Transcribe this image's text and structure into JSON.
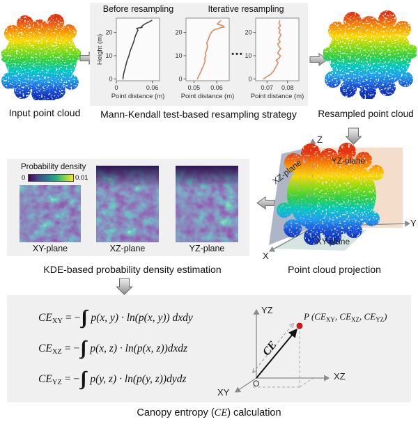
{
  "top": {
    "input_label": "Input point cloud",
    "resampling_label": "Mann-Kendall test-based resampling strategy",
    "resampled_label": "Resampled point cloud",
    "chart_title_before": "Before resampling",
    "chart_title_iterative": "Iterative resampling",
    "dots": "•••"
  },
  "chart_data": [
    {
      "id": "before-resampling",
      "type": "line",
      "title": "Before resampling",
      "xlabel": "Point distance (m)",
      "ylabel": "Height (m)",
      "xlim": [
        0,
        0.072
      ],
      "ylim": [
        -0.8,
        26.2
      ],
      "xticks": [
        0,
        0.06
      ],
      "xtick_labels": [
        "0",
        "0.06"
      ],
      "yticks": [
        0,
        10,
        20
      ],
      "color": "#3d3d3d",
      "x": [
        0.011,
        0.012,
        0.014,
        0.016,
        0.018,
        0.021,
        0.023,
        0.026,
        0.029,
        0.031,
        0.034,
        0.036,
        0.034,
        0.043,
        0.042,
        0.047,
        0.05,
        0.055,
        0.059
      ],
      "y": [
        0,
        2,
        4,
        6,
        8,
        10,
        12,
        14,
        16,
        18,
        20,
        21,
        21.8,
        22.2,
        22.6,
        23.6,
        24,
        24.6,
        25.2
      ]
    },
    {
      "id": "iterative-resampling-1",
      "type": "line",
      "title": "Iterative resampling",
      "xlabel": "Point distance (m)",
      "ylabel": "",
      "xlim": [
        0.0465,
        0.0655
      ],
      "ylim": [
        -0.8,
        26.2
      ],
      "xticks": [
        0.05,
        0.06
      ],
      "xtick_labels": [
        "0.05",
        "0.06"
      ],
      "yticks": [
        0,
        10,
        20
      ],
      "color": "#e2885f",
      "x": [
        0.0515,
        0.0522,
        0.053,
        0.0536,
        0.0543,
        0.0549,
        0.0547,
        0.0553,
        0.055,
        0.0556,
        0.056,
        0.0556,
        0.0563,
        0.0568,
        0.0576,
        0.0586,
        0.0615,
        0.0634,
        0.0625,
        0.0603,
        0.0608,
        0.0617
      ],
      "y": [
        0,
        1.5,
        3,
        4.5,
        6,
        7.5,
        9,
        10,
        11,
        12.5,
        14,
        15.5,
        17,
        18.5,
        20,
        21,
        22,
        22.4,
        23,
        23.6,
        24.2,
        25
      ]
    },
    {
      "id": "iterative-resampling-n",
      "type": "line",
      "title": "Iterative resampling",
      "xlabel": "Point distance (m)",
      "ylabel": "",
      "xlim": [
        0.0645,
        0.0855
      ],
      "ylim": [
        -0.8,
        26.2
      ],
      "xticks": [
        0.07,
        0.08
      ],
      "xtick_labels": [
        "0.07",
        "0.08"
      ],
      "yticks": [
        0,
        10,
        20
      ],
      "color": "#e2885f",
      "x": [
        0.0683,
        0.07,
        0.0718,
        0.0733,
        0.0742,
        0.0748,
        0.0754,
        0.0744,
        0.076,
        0.0765,
        0.0752,
        0.0758,
        0.0766,
        0.0758,
        0.0752,
        0.0764,
        0.0756,
        0.0762,
        0.0768,
        0.0758,
        0.0764,
        0.0756,
        0.0766,
        0.0758,
        0.0762
      ],
      "y": [
        0,
        1,
        2,
        3.5,
        5,
        6,
        7,
        8,
        9,
        10,
        11,
        12,
        13,
        14,
        15,
        16,
        17,
        18,
        19,
        20,
        21,
        22,
        23,
        24,
        25
      ]
    }
  ],
  "kde": {
    "colorbar_title": "Probability density",
    "colorbar_min": "0",
    "colorbar_max": "0.01",
    "plane_labels": [
      "XY-plane",
      "XZ-plane",
      "YZ-plane"
    ],
    "caption": "KDE-based probability density estimation"
  },
  "projection": {
    "caption": "Point cloud projection",
    "axis_x": "X",
    "axis_y": "Y",
    "axis_z": "Z",
    "plane_xz": "XZ-plane",
    "plane_yz": "YZ-plane",
    "plane_xy": "XY-plane"
  },
  "entropy": {
    "equations": [
      {
        "lhs": "CE",
        "sub": "XY",
        "rel": "= −",
        "integral": "∫∫",
        "body": "p(x, y) · ln(p(x, y)) dxdy"
      },
      {
        "lhs": "CE",
        "sub": "XZ",
        "rel": "= −",
        "integral": "∫∫",
        "body": "p(x, z) · ln(p(x, z))dxdz"
      },
      {
        "lhs": "CE",
        "sub": "YZ",
        "rel": "= −",
        "integral": "∫∫",
        "body": "p(y, z) · ln(p(y, z))dydz"
      }
    ],
    "diagram": {
      "axis_yz": "YZ",
      "axis_xz": "XZ",
      "axis_xy": "XY",
      "origin": "O",
      "ce_label": "CE",
      "p_pre": "P (CE",
      "p_sub1": "XY",
      "p_mid1": ", CE",
      "p_sub2": "XZ",
      "p_mid2": ", CE",
      "p_sub3": "YZ",
      "p_post": ")"
    },
    "caption_pre": "Canopy entropy (",
    "caption_italic": "CE",
    "caption_post": ") calculation"
  },
  "colors": {
    "panel_bg": "#f0f0f0",
    "before_line": "#3d3d3d",
    "iterative_line": "#e2885f",
    "xz_plane": "#a9b2c4",
    "yz_plane": "#f4dbc8",
    "xy_plane": "#d4e4e0",
    "point_p": "#dd1512",
    "viridis": [
      "#440154",
      "#414487",
      "#2a788e",
      "#22a884",
      "#7ad151",
      "#fde725"
    ],
    "rainbow": [
      "#e53109",
      "#f97e06",
      "#ffd800",
      "#2bcf45",
      "#00c9c0",
      "#1e9ff0",
      "#0d30b8"
    ]
  }
}
